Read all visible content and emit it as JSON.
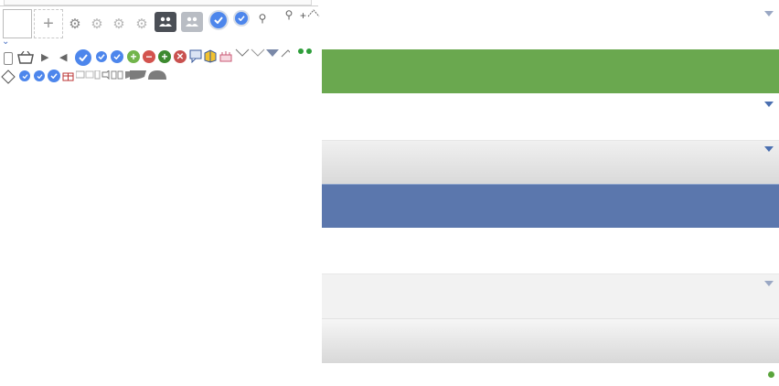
{
  "add_tile": {
    "label": "+"
  },
  "chevron_small": "⌄",
  "icons": {
    "gear": "⚙",
    "magnifier": "⚲",
    "plus_small": "+",
    "caret_left": "◀",
    "caret_right": "▶",
    "basket": "🧺",
    "gift": "🎁"
  },
  "colors": {
    "green_bar": "#6aa84f",
    "blue_bar": "#5b77ad",
    "check_blue": "#4d86ec",
    "group_dark": "#4b4f56",
    "group_light": "#b9bdc4"
  }
}
